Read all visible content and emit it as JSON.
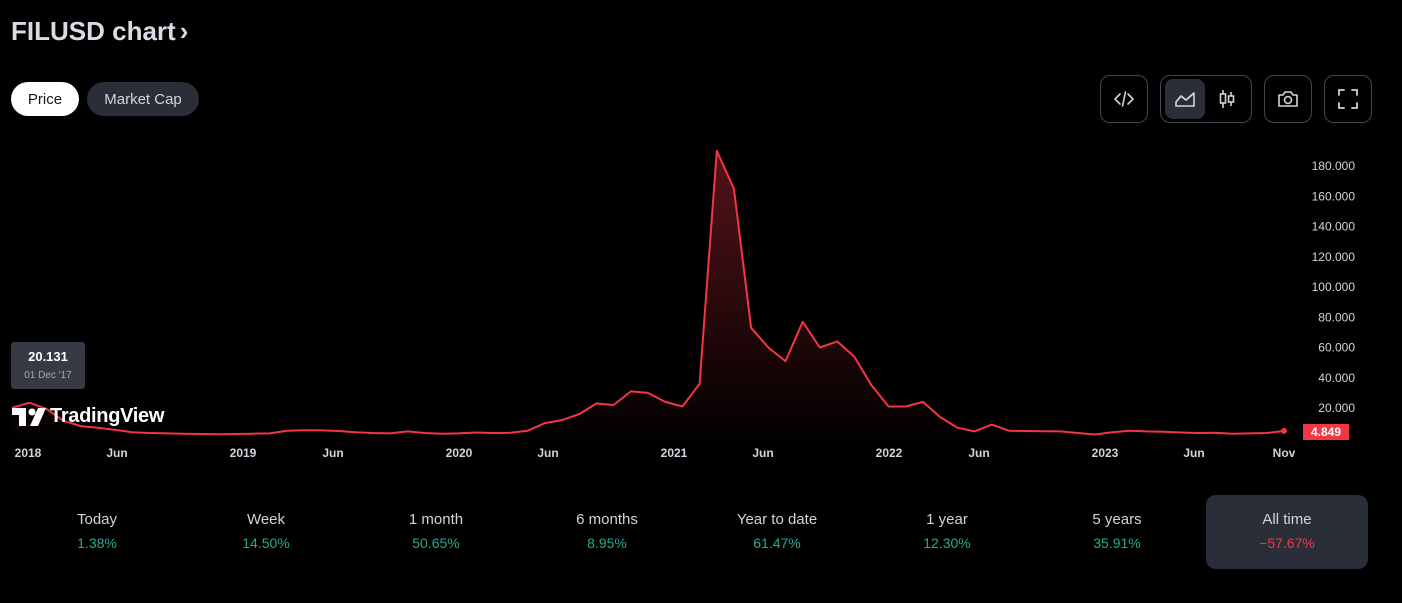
{
  "header": {
    "title": "FILUSD chart",
    "chevron": "›"
  },
  "tabs": [
    {
      "label": "Price",
      "active": true
    },
    {
      "label": "Market Cap",
      "active": false
    }
  ],
  "toolbar": {
    "embed_icon": "code-icon",
    "line_chart_icon": "area-chart-icon",
    "candles_icon": "candlestick-icon",
    "snapshot_icon": "camera-icon",
    "fullscreen_icon": "fullscreen-icon"
  },
  "tooltip": {
    "value": "20.131",
    "date": "01 Dec '17"
  },
  "brand": {
    "name": "TradingView"
  },
  "last_price": "4.849",
  "colors": {
    "line": "#f23645",
    "positive": "#22ab94",
    "negative": "#f23645"
  },
  "chart_data": {
    "type": "area",
    "y_ticks": [
      "180.000",
      "160.000",
      "140.000",
      "120.000",
      "100.000",
      "80.000",
      "60.000",
      "40.000",
      "20.000"
    ],
    "x_ticks": [
      "2018",
      "Jun",
      "2019",
      "Jun",
      "2020",
      "Jun",
      "2021",
      "Jun",
      "2022",
      "Jun",
      "2023",
      "Jun",
      "Nov"
    ],
    "ylim": [
      0,
      190
    ],
    "series": [
      {
        "values": [
          20.1,
          23.5,
          19.5,
          11.5,
          8.0,
          7.0,
          5.5,
          4.0,
          3.5,
          3.2,
          3.0,
          2.8,
          2.6,
          2.8,
          3.0,
          3.2,
          5.0,
          5.3,
          5.2,
          4.8,
          4.0,
          3.5,
          3.2,
          4.5,
          3.5,
          3.0,
          3.2,
          3.8,
          3.5,
          3.6,
          5.0,
          10.0,
          12.0,
          16.0,
          23.0,
          22.0,
          31.0,
          30.0,
          24.0,
          21.0,
          36.0,
          190.0,
          165.0,
          73.0,
          60.0,
          51.0,
          77.0,
          60.0,
          64.0,
          54.0,
          35.0,
          21.0,
          21.0,
          24.0,
          14.0,
          7.0,
          4.5,
          9.0,
          5.0,
          4.8,
          4.6,
          4.5,
          3.5,
          2.5,
          4.0,
          5.0,
          4.5,
          4.3,
          3.8,
          3.5,
          3.6,
          3.0,
          3.2,
          3.5,
          4.849
        ]
      }
    ]
  },
  "performance": [
    {
      "label": "Today",
      "value": "1.38%",
      "sign": "pos",
      "active": false
    },
    {
      "label": "Week",
      "value": "14.50%",
      "sign": "pos",
      "active": false
    },
    {
      "label": "1 month",
      "value": "50.65%",
      "sign": "pos",
      "active": false
    },
    {
      "label": "6 months",
      "value": "8.95%",
      "sign": "pos",
      "active": false
    },
    {
      "label": "Year to date",
      "value": "61.47%",
      "sign": "pos",
      "active": false
    },
    {
      "label": "1 year",
      "value": "12.30%",
      "sign": "pos",
      "active": false
    },
    {
      "label": "5 years",
      "value": "35.91%",
      "sign": "pos",
      "active": false
    },
    {
      "label": "All time",
      "value": "−57.67%",
      "sign": "neg",
      "active": true
    }
  ]
}
